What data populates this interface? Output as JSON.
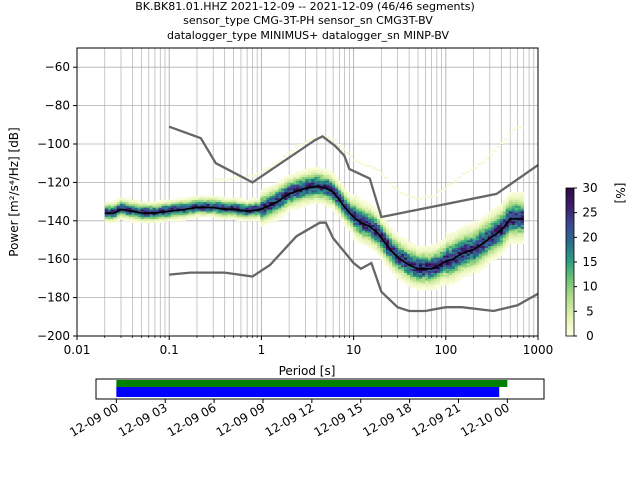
{
  "title": {
    "line1": "BK.BK81.01.HHZ   2021-12-09 -- 2021-12-09  (46/46 segments)",
    "line2": "sensor_type CMG-3T-PH sensor_sn CMG3T-BV",
    "line3": "datalogger_type MINIMUS+ datalogger_sn MINP-BV"
  },
  "chart_data": [
    {
      "type": "heatmap",
      "name": "ppsd",
      "xlabel": "Period [s]",
      "ylabel": "Power [m²/s⁴/Hz] [dB]",
      "xscale": "log",
      "xlim": [
        0.01,
        1000
      ],
      "ylim": [
        -200,
        -50
      ],
      "xticks": [
        0.01,
        0.1,
        1,
        10,
        100,
        1000
      ],
      "xtick_labels": [
        "0.01",
        "0.1",
        "1",
        "10",
        "100",
        "1000"
      ],
      "yticks": [
        -200,
        -180,
        -160,
        -140,
        -120,
        -100,
        -80,
        -60
      ],
      "ytick_labels": [
        "−200",
        "−180",
        "−160",
        "−140",
        "−120",
        "−100",
        "−80",
        "−60"
      ],
      "grid": true,
      "colorbar": {
        "label": "[%]",
        "range": [
          0,
          30
        ],
        "ticks": [
          0,
          5,
          10,
          15,
          20,
          25,
          30
        ],
        "tick_labels": [
          "0",
          "5",
          "10",
          "15",
          "20",
          "25",
          "30"
        ],
        "colormap": [
          "#ffffe5",
          "#e4f3b4",
          "#b5df8e",
          "#74c476",
          "#2ea080",
          "#2a708c",
          "#3b4a94",
          "#3f1f6b",
          "#2c0a48"
        ]
      },
      "mode_curve": {
        "name": "mode",
        "color": "#000000",
        "points": [
          [
            0.02,
            -136
          ],
          [
            0.025,
            -136
          ],
          [
            0.03,
            -134
          ],
          [
            0.04,
            -135
          ],
          [
            0.05,
            -136
          ],
          [
            0.07,
            -136
          ],
          [
            0.1,
            -135
          ],
          [
            0.15,
            -134
          ],
          [
            0.2,
            -133
          ],
          [
            0.3,
            -133
          ],
          [
            0.4,
            -134
          ],
          [
            0.5,
            -134
          ],
          [
            0.7,
            -135
          ],
          [
            1,
            -134
          ],
          [
            1.5,
            -130
          ],
          [
            2,
            -126
          ],
          [
            3,
            -123
          ],
          [
            4,
            -122
          ],
          [
            5,
            -123
          ],
          [
            6,
            -125
          ],
          [
            7,
            -129
          ],
          [
            8,
            -133
          ],
          [
            10,
            -138
          ],
          [
            12,
            -141
          ],
          [
            15,
            -143
          ],
          [
            18,
            -146
          ],
          [
            20,
            -149
          ],
          [
            25,
            -155
          ],
          [
            30,
            -159
          ],
          [
            40,
            -163
          ],
          [
            50,
            -165
          ],
          [
            60,
            -165
          ],
          [
            70,
            -165
          ],
          [
            80,
            -164
          ],
          [
            100,
            -161
          ],
          [
            120,
            -160
          ],
          [
            150,
            -157
          ],
          [
            200,
            -155
          ],
          [
            250,
            -152
          ],
          [
            300,
            -149
          ],
          [
            400,
            -145
          ],
          [
            500,
            -139
          ],
          [
            700,
            -139
          ]
        ]
      },
      "noise_models": [
        {
          "name": "NHNM",
          "color": "#666666",
          "points": [
            [
              0.1,
              -91
            ],
            [
              0.22,
              -97
            ],
            [
              0.32,
              -110
            ],
            [
              0.8,
              -120
            ],
            [
              3.8,
              -98
            ],
            [
              4.6,
              -96
            ],
            [
              6.3,
              -101
            ],
            [
              7.9,
              -106
            ],
            [
              9,
              -113
            ],
            [
              15,
              -118
            ],
            [
              20,
              -138
            ],
            [
              355,
              -126
            ],
            [
              1000,
              -111
            ]
          ]
        },
        {
          "name": "NLNM",
          "color": "#666666",
          "points": [
            [
              0.1,
              -168
            ],
            [
              0.17,
              -167
            ],
            [
              0.4,
              -167
            ],
            [
              0.8,
              -169
            ],
            [
              1.24,
              -163
            ],
            [
              2.4,
              -148
            ],
            [
              4.3,
              -141
            ],
            [
              5,
              -141
            ],
            [
              6,
              -149
            ],
            [
              10,
              -162
            ],
            [
              12,
              -165
            ],
            [
              15.6,
              -162
            ],
            [
              20,
              -177
            ],
            [
              30,
              -185
            ],
            [
              40,
              -187
            ],
            [
              60,
              -187
            ],
            [
              100,
              -185
            ],
            [
              150,
              -185
            ],
            [
              330,
              -187
            ],
            [
              600,
              -184
            ],
            [
              1000,
              -178
            ]
          ]
        }
      ]
    },
    {
      "type": "bar",
      "name": "data-coverage",
      "xlim": [
        "12-08 22:45",
        "12-10 02:15"
      ],
      "xtick_labels": [
        "12-09 00",
        "12-09 03",
        "12-09 06",
        "12-09 09",
        "12-09 12",
        "12-09 15",
        "12-09 18",
        "12-09 21",
        "12-10 00"
      ],
      "bars": [
        {
          "name": "data",
          "color": "#008000",
          "start": "12-09 00:00",
          "end": "12-10 00:00"
        },
        {
          "name": "used",
          "color": "#0000ff",
          "start": "12-09 00:00",
          "end": "12-09 23:30"
        }
      ]
    }
  ]
}
